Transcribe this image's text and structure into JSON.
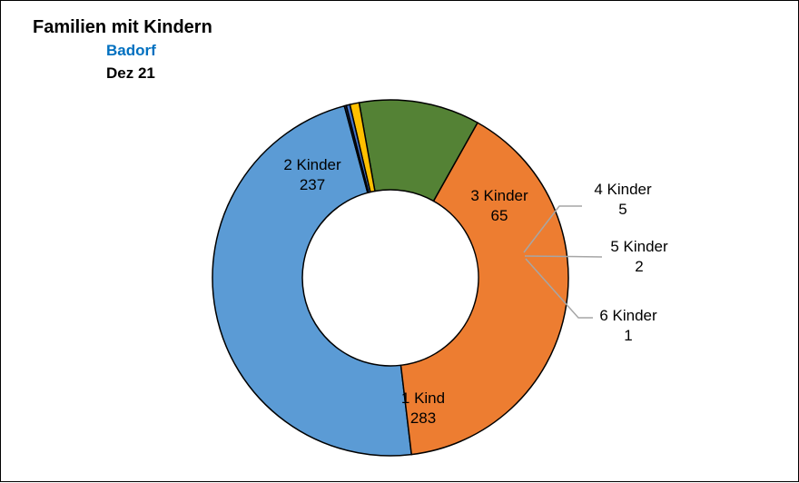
{
  "header": {
    "title": "Familien mit Kindern",
    "subtitle": "Badorf",
    "date": "Dez 21"
  },
  "colors": {
    "subtitle": "#0070C0"
  },
  "chart_data": {
    "type": "pie",
    "variant": "doughnut",
    "title": "Familien mit Kindern",
    "start_angle_deg": 105,
    "direction": "counterclockwise",
    "slices": [
      {
        "label": "1 Kind",
        "value": 283,
        "color": "#5B9BD5"
      },
      {
        "label": "2 Kinder",
        "value": 237,
        "color": "#ED7D31"
      },
      {
        "label": "3 Kinder",
        "value": 65,
        "color": "#548235"
      },
      {
        "label": "4 Kinder",
        "value": 5,
        "color": "#FFC000"
      },
      {
        "label": "5 Kinder",
        "value": 2,
        "color": "#4472C4"
      },
      {
        "label": "6 Kinder",
        "value": 1,
        "color": "#1F3864"
      }
    ]
  }
}
